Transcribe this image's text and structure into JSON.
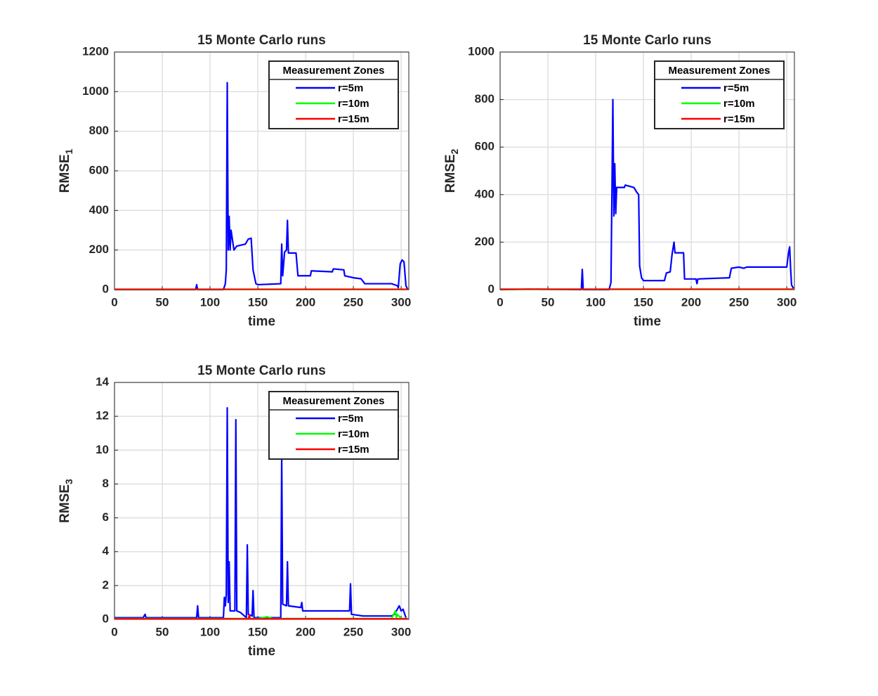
{
  "chart_data": [
    {
      "type": "line",
      "title": "15 Monte Carlo runs",
      "xlabel": "time",
      "ylabel": "RMSE",
      "ylabel_subscript": "1",
      "xlim": [
        0,
        308
      ],
      "ylim": [
        0,
        1200
      ],
      "xticks": [
        0,
        50,
        100,
        150,
        200,
        250,
        300
      ],
      "yticks": [
        0,
        200,
        400,
        600,
        800,
        1000,
        1200
      ],
      "grid": true,
      "legend_title": "Measurement Zones",
      "legend_location": "northeast",
      "series": [
        {
          "name": "r=5m",
          "color": "#0000ff",
          "x": [
            0,
            85,
            86,
            87,
            114,
            116,
            117,
            118,
            119,
            120,
            121,
            122,
            125,
            128,
            137,
            140,
            143,
            145,
            148,
            150,
            174,
            175,
            176,
            178,
            180,
            181,
            182,
            190,
            192,
            205,
            206,
            228,
            229,
            240,
            241,
            250,
            258,
            262,
            290,
            296,
            297,
            299,
            301,
            303,
            305,
            307
          ],
          "values": [
            0,
            0,
            25,
            0,
            0,
            30,
            100,
            1045,
            200,
            370,
            200,
            300,
            200,
            220,
            230,
            255,
            260,
            100,
            30,
            25,
            30,
            230,
            70,
            190,
            200,
            350,
            185,
            185,
            70,
            70,
            95,
            90,
            105,
            100,
            70,
            60,
            55,
            30,
            30,
            20,
            10,
            130,
            150,
            140,
            20,
            0
          ]
        },
        {
          "name": "r=10m",
          "color": "#00ff00",
          "x": [
            0,
            307
          ],
          "values": [
            1,
            1
          ]
        },
        {
          "name": "r=15m",
          "color": "#ff0000",
          "x": [
            0,
            307
          ],
          "values": [
            2,
            2
          ]
        }
      ]
    },
    {
      "type": "line",
      "title": "15 Monte Carlo runs",
      "xlabel": "time",
      "ylabel": "RMSE",
      "ylabel_subscript": "2",
      "xlim": [
        0,
        308
      ],
      "ylim": [
        0,
        1000
      ],
      "xticks": [
        0,
        50,
        100,
        150,
        200,
        250,
        300
      ],
      "yticks": [
        0,
        200,
        400,
        600,
        800,
        1000
      ],
      "grid": true,
      "legend_title": "Measurement Zones",
      "legend_location": "northeast",
      "series": [
        {
          "name": "r=5m",
          "color": "#0000ff",
          "x": [
            0,
            30,
            85,
            86,
            87,
            114,
            116,
            117,
            118,
            119,
            120,
            121,
            122,
            130,
            131,
            140,
            143,
            145,
            146,
            148,
            150,
            172,
            174,
            178,
            180,
            182,
            183,
            192,
            193,
            205,
            206,
            207,
            240,
            242,
            250,
            255,
            258,
            300,
            302,
            303,
            304,
            305,
            307
          ],
          "values": [
            0,
            2,
            0,
            85,
            0,
            0,
            30,
            400,
            800,
            310,
            530,
            320,
            430,
            430,
            440,
            430,
            410,
            400,
            100,
            50,
            38,
            38,
            70,
            75,
            150,
            200,
            155,
            155,
            45,
            45,
            25,
            45,
            50,
            90,
            95,
            90,
            95,
            95,
            160,
            180,
            90,
            20,
            5
          ]
        },
        {
          "name": "r=10m",
          "color": "#00ff00",
          "x": [
            0,
            307
          ],
          "values": [
            1,
            1
          ]
        },
        {
          "name": "r=15m",
          "color": "#ff0000",
          "x": [
            0,
            307
          ],
          "values": [
            2,
            2
          ]
        }
      ]
    },
    {
      "type": "line",
      "title": "15 Monte Carlo runs",
      "xlabel": "time",
      "ylabel": "RMSE",
      "ylabel_subscript": "3",
      "xlim": [
        0,
        308
      ],
      "ylim": [
        0,
        14
      ],
      "xticks": [
        0,
        50,
        100,
        150,
        200,
        250,
        300
      ],
      "yticks": [
        0,
        2,
        4,
        6,
        8,
        10,
        12,
        14
      ],
      "grid": true,
      "legend_title": "Measurement Zones",
      "legend_location": "northeast",
      "series": [
        {
          "name": "r=5m",
          "color": "#0000ff",
          "x": [
            0,
            30,
            32,
            33,
            86,
            87,
            88,
            114,
            115,
            116,
            117,
            118,
            119,
            120,
            121,
            126,
            127,
            128,
            132,
            138,
            139,
            140,
            144,
            145,
            146,
            174,
            175,
            176,
            180,
            181,
            182,
            195,
            196,
            197,
            246,
            247,
            248,
            260,
            290,
            293,
            298,
            300,
            302,
            305
          ],
          "values": [
            0.1,
            0.1,
            0.3,
            0.1,
            0.1,
            0.8,
            0.1,
            0.1,
            1.3,
            0.8,
            1.5,
            12.5,
            1,
            3.4,
            0.5,
            0.5,
            11.8,
            0.5,
            0.4,
            0.1,
            4.4,
            0.3,
            0.2,
            1.7,
            0.1,
            0.1,
            9.7,
            0.9,
            0.8,
            3.4,
            0.8,
            0.7,
            1,
            0.5,
            0.5,
            2.1,
            0.3,
            0.2,
            0.2,
            0.3,
            0.8,
            0.5,
            0.6,
            0.1
          ]
        },
        {
          "name": "r=10m",
          "color": "#00ff00",
          "x": [
            0,
            150,
            160,
            165,
            290,
            294,
            295,
            296,
            300,
            307
          ],
          "values": [
            0.05,
            0.05,
            0.15,
            0.05,
            0.05,
            0.5,
            0.1,
            0.3,
            0.05,
            0.05
          ]
        },
        {
          "name": "r=15m",
          "color": "#ff0000",
          "x": [
            0,
            140,
            141,
            142,
            307
          ],
          "values": [
            0.03,
            0.03,
            0.25,
            0.03,
            0.03
          ]
        }
      ]
    }
  ]
}
